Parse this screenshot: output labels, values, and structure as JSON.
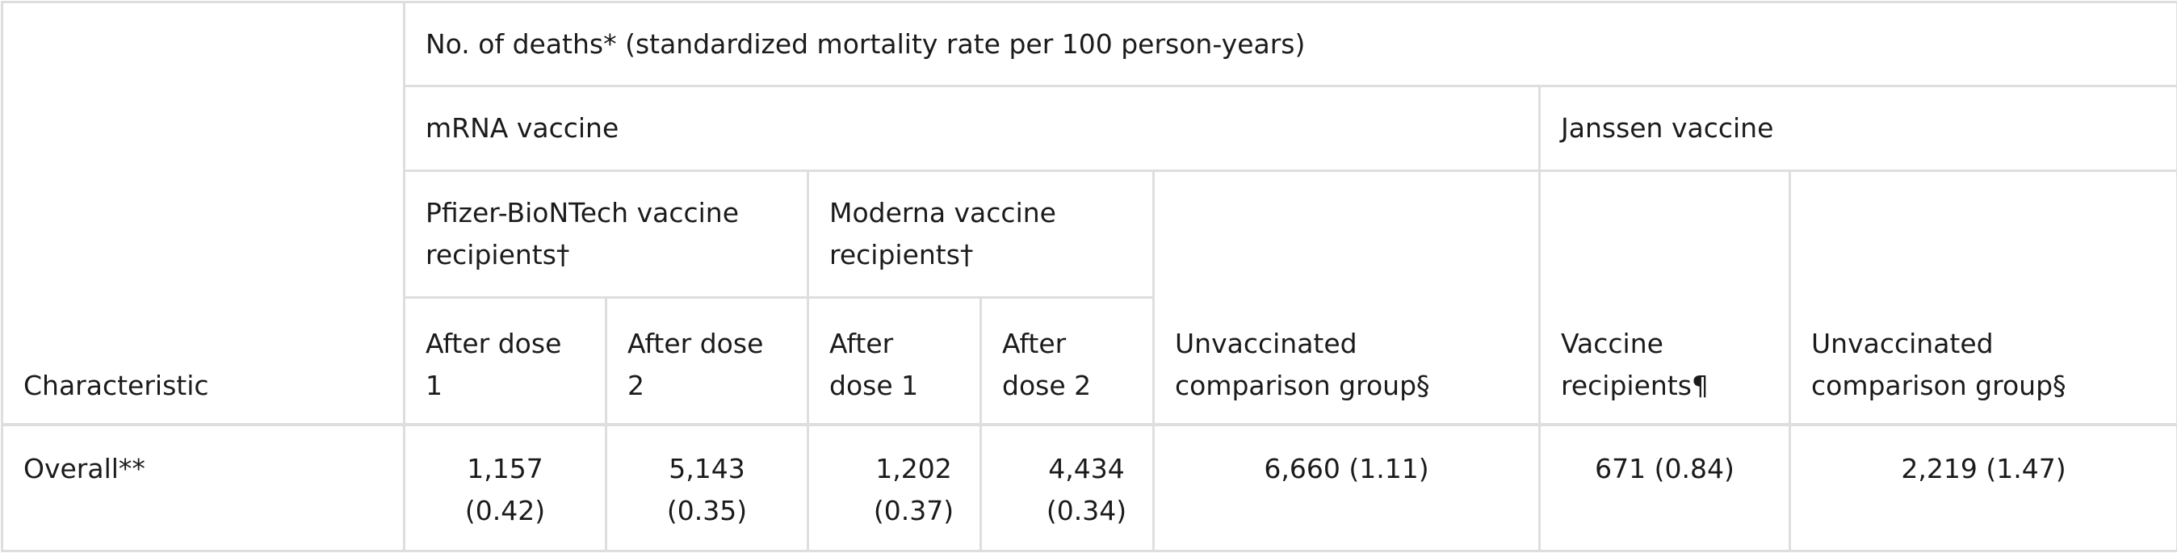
{
  "table": {
    "characteristic_header": "Characteristic",
    "group_header": "No. of deaths* (standardized mortality rate per 100 person-years)",
    "mrna_header": "mRNA vaccine",
    "janssen_header": "Janssen vaccine",
    "pfizer_header": "Pfizer-BioNTech vaccine recipients†",
    "moderna_header": "Moderna vaccine recipients†",
    "unvaccinated_mrna_header": "Unvaccinated comparison group§",
    "janssen_recipients_header": "Vaccine recipients¶",
    "unvaccinated_janssen_header": "Unvaccinated comparison group§",
    "pfizer_dose1_header": "After dose 1",
    "pfizer_dose2_header": "After dose 2",
    "moderna_dose1_header": "After dose 1",
    "moderna_dose2_header": "After dose 2",
    "rows": [
      {
        "label": "Overall**",
        "pfizer_dose1": "1,157 (0.42)",
        "pfizer_dose2": "5,143 (0.35)",
        "moderna_dose1": "1,202 (0.37)",
        "moderna_dose2": "4,434 (0.34)",
        "unvaccinated_mrna": "6,660 (1.11)",
        "janssen_recipients": "671 (0.84)",
        "unvaccinated_janssen": "2,219 (1.47)"
      }
    ]
  }
}
